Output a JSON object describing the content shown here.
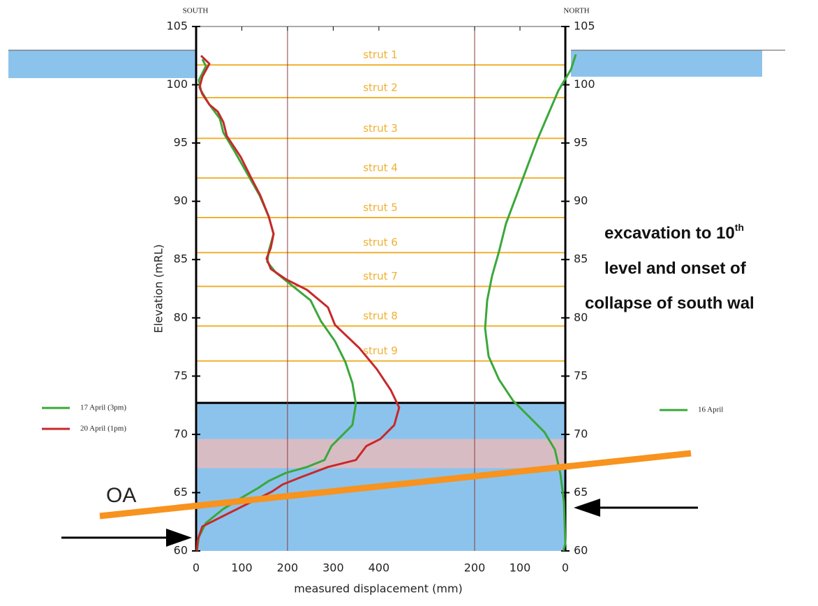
{
  "chart_data": {
    "type": "profile",
    "left_label": "SOUTH",
    "right_label": "NORTH",
    "y_label": "Elevation (mRL)",
    "x_label": "measured displacement (mm)",
    "ylim": [
      60,
      105
    ],
    "yticks": [
      60,
      65,
      70,
      75,
      80,
      85,
      90,
      95,
      100,
      105
    ],
    "y2lim": [
      60,
      105
    ],
    "y2ticks": [
      60,
      65,
      70,
      75,
      80,
      85,
      90,
      95,
      100,
      105
    ],
    "xlim": [
      0,
      808
    ],
    "xticks": [
      0,
      100,
      200,
      300,
      400
    ],
    "x2lim": [
      814,
      0
    ],
    "x2ticks": [
      200,
      100,
      0
    ],
    "x_gridlines": [
      200
    ],
    "x2_gridlines": [
      200
    ],
    "struts": [
      {
        "label": "strut 1",
        "elevation": 101.7
      },
      {
        "label": "strut 2",
        "elevation": 98.9
      },
      {
        "label": "strut 3",
        "elevation": 95.4
      },
      {
        "label": "strut 4",
        "elevation": 92.0
      },
      {
        "label": "strut 5",
        "elevation": 88.6
      },
      {
        "label": "strut 6",
        "elevation": 85.6
      },
      {
        "label": "strut 7",
        "elevation": 82.7
      },
      {
        "label": "strut 8",
        "elevation": 79.3
      },
      {
        "label": "strut 9",
        "elevation": 76.3
      }
    ],
    "strut_color": "#f0b030",
    "bands": [
      {
        "from": 60,
        "to": 72.7,
        "color": "#8cc3ec"
      },
      {
        "from": 67.1,
        "to": 69.6,
        "color": "#d8bcc4"
      }
    ],
    "excavation_level": 72.7,
    "series": [
      {
        "name": "17 April (3pm)",
        "color": "#3aa83a",
        "legend": "left",
        "x": [
          13.7,
          21.4,
          6.1,
          10.7,
          29,
          51.9,
          59.5,
          82.4,
          113,
          138.9,
          158.8,
          169.5,
          158.8,
          155.7,
          174,
          212.2,
          250.4,
          273.3,
          303.8,
          326.7,
          342,
          349.6,
          342,
          319.1,
          296.2,
          280.9,
          242.7,
          196.9,
          158.8,
          135.9,
          105.3,
          59.5,
          21.4,
          6.1,
          1.5
        ],
        "y": [
          102.2,
          101.6,
          100.4,
          99.5,
          98.3,
          97.1,
          95.9,
          94.4,
          92.3,
          90.5,
          88.7,
          87.2,
          85.7,
          84.8,
          83.9,
          82.7,
          81.5,
          79.7,
          78.0,
          76.2,
          74.4,
          72.6,
          70.8,
          69.9,
          69.0,
          67.8,
          67.2,
          66.7,
          66.0,
          65.4,
          64.7,
          63.6,
          62.4,
          61.2,
          60.0
        ]
      },
      {
        "name": "20 April (1pm)",
        "color": "#c8282a",
        "legend": "left",
        "x": [
          10.7,
          29,
          13.7,
          7.6,
          13.7,
          29,
          47.3,
          59.5,
          67.2,
          97.7,
          120.6,
          140.5,
          158.8,
          169.5,
          163.4,
          154.2,
          163.4,
          196.9,
          242.7,
          288.5,
          303.8,
          357.3,
          395.4,
          426,
          444.3,
          433.6,
          403.1,
          372.5,
          349.6,
          288.5,
          227.5,
          189.3,
          166.4,
          120.6,
          59.5,
          13.7,
          3.1,
          1.5
        ],
        "y": [
          102.5,
          101.8,
          100.7,
          99.8,
          99.2,
          98.3,
          97.7,
          96.8,
          95.6,
          93.8,
          92.0,
          90.5,
          88.7,
          87.2,
          86.0,
          85.1,
          84.2,
          83.3,
          82.4,
          80.9,
          79.4,
          77.4,
          75.6,
          73.8,
          72.3,
          70.8,
          69.6,
          69.0,
          67.8,
          67.2,
          66.3,
          65.7,
          65.1,
          64.2,
          63.0,
          62.1,
          60.9,
          60.0
        ]
      },
      {
        "name": "16 April",
        "color": "#3aa83a",
        "legend": "right",
        "axis": "x2",
        "x": [
          -23.1,
          -12.3,
          15.4,
          38.5,
          61.5,
          84.6,
          107.7,
          130.8,
          146.2,
          161.5,
          172.3,
          176.9,
          169.2,
          146.2,
          115.4,
          76.9,
          46.2,
          23.1,
          10.8,
          3.1,
          0,
          4.6
        ],
        "y": [
          102.6,
          101.3,
          99.5,
          97.4,
          95.3,
          92.9,
          90.5,
          88.1,
          85.7,
          83.6,
          81.5,
          79.1,
          76.7,
          74.7,
          72.9,
          71.4,
          70.2,
          68.7,
          66.6,
          64.2,
          60.6,
          60.0
        ]
      }
    ],
    "oa_label": "OA",
    "annotation": {
      "lines": [
        "excavation to 10",
        "level and onset of",
        "collapse of south wal"
      ],
      "superscript": "th"
    }
  }
}
